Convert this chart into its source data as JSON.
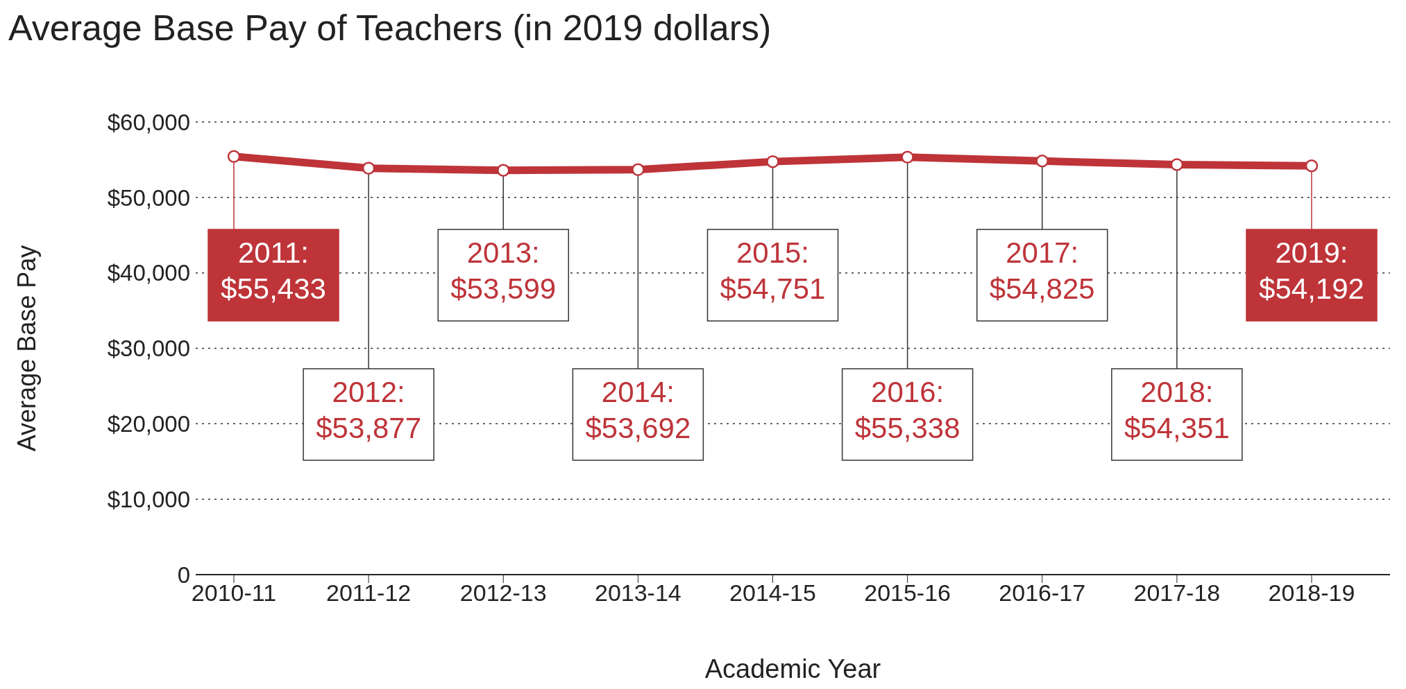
{
  "chart_data": {
    "type": "line",
    "title": "Average Base Pay of Teachers (in 2019 dollars)",
    "xlabel": "Academic Year",
    "ylabel": "Average Base Pay",
    "categories": [
      "2010-11",
      "2011-12",
      "2012-13",
      "2013-14",
      "2014-15",
      "2015-16",
      "2016-17",
      "2017-18",
      "2018-19"
    ],
    "values": [
      55433,
      53877,
      53599,
      53692,
      54751,
      55338,
      54825,
      54351,
      54192
    ],
    "value_labels": [
      "2011: $55,433",
      "2012: $53,877",
      "2013: $53,599",
      "2014: $53,692",
      "2015: $54,751",
      "2016: $55,338",
      "2017: $54,825",
      "2018: $54,351",
      "2019: $54,192"
    ],
    "color": "#be3439",
    "ylim": [
      0,
      60000
    ],
    "yticks": [
      0,
      {
        "value": 10000,
        "label": "$10,000"
      },
      {
        "value": 20000,
        "label": "$20,000"
      },
      {
        "value": 30000,
        "label": "$30,000"
      },
      {
        "value": 40000,
        "label": "$40,000"
      },
      {
        "value": 50000,
        "label": "$50,000"
      },
      {
        "value": 60000,
        "label": "$60,000"
      }
    ],
    "grid": "y",
    "marker": "circle",
    "line_style": "solid"
  }
}
